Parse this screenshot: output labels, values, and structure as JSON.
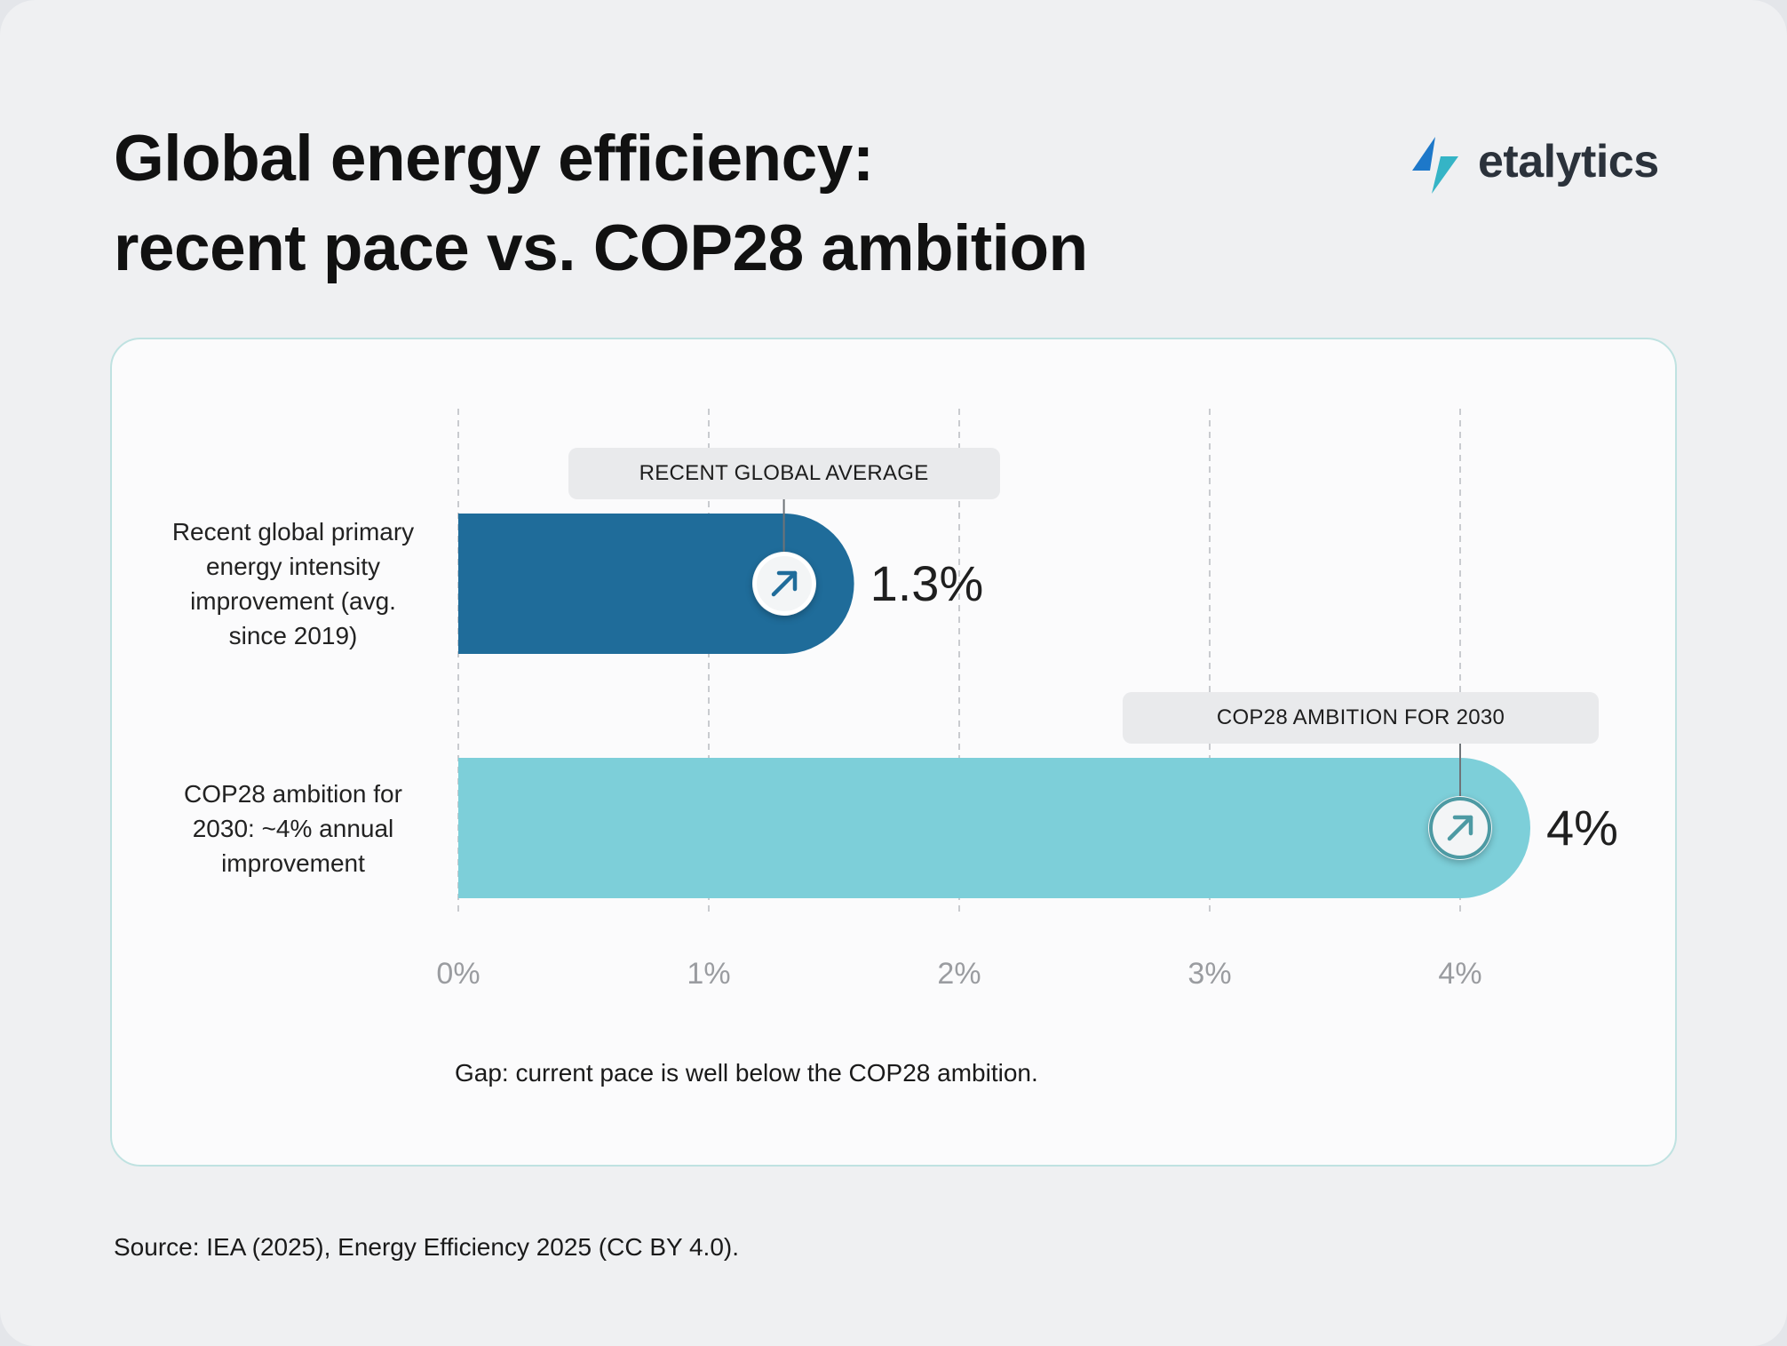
{
  "header": {
    "title_line1": "Global energy efficiency:",
    "title_line2": "recent pace vs. COP28 ambition",
    "logo_text": "etalytics"
  },
  "colors": {
    "bar_recent": "#1f6c9a",
    "bar_target": "#7dcfd9",
    "card_border": "#bfe2e1",
    "logo_blue": "#1d78c9",
    "logo_teal": "#35b4c6"
  },
  "chart_data": {
    "type": "bar",
    "orientation": "horizontal",
    "categories": [
      "Recent global primary energy intensity improvement (avg. since 2019)",
      "COP28 ambition for 2030: ~4% annual improvement"
    ],
    "category_lines": [
      [
        "Recent global primary",
        "energy intensity",
        "improvement (avg.",
        "since 2019)"
      ],
      [
        "COP28 ambition for",
        "2030: ~4% annual",
        "improvement"
      ]
    ],
    "values": [
      1.3,
      4
    ],
    "value_labels": [
      "1.3%",
      "4%"
    ],
    "callouts": [
      "RECENT GLOBAL AVERAGE",
      "COP28 AMBITION FOR 2030"
    ],
    "bar_icons": [
      "arrow-up-right-icon",
      "arrow-up-right-icon"
    ],
    "x_ticks": [
      0,
      1,
      2,
      3,
      4
    ],
    "x_tick_labels": [
      "0%",
      "1%",
      "2%",
      "3%",
      "4%"
    ],
    "xlim": [
      0,
      4
    ],
    "grid": "vertical dashed",
    "note": "Gap: current pace is well below the COP28 ambition."
  },
  "footer": {
    "source": "Source: IEA (2025), Energy Efficiency 2025 (CC BY 4.0)."
  }
}
